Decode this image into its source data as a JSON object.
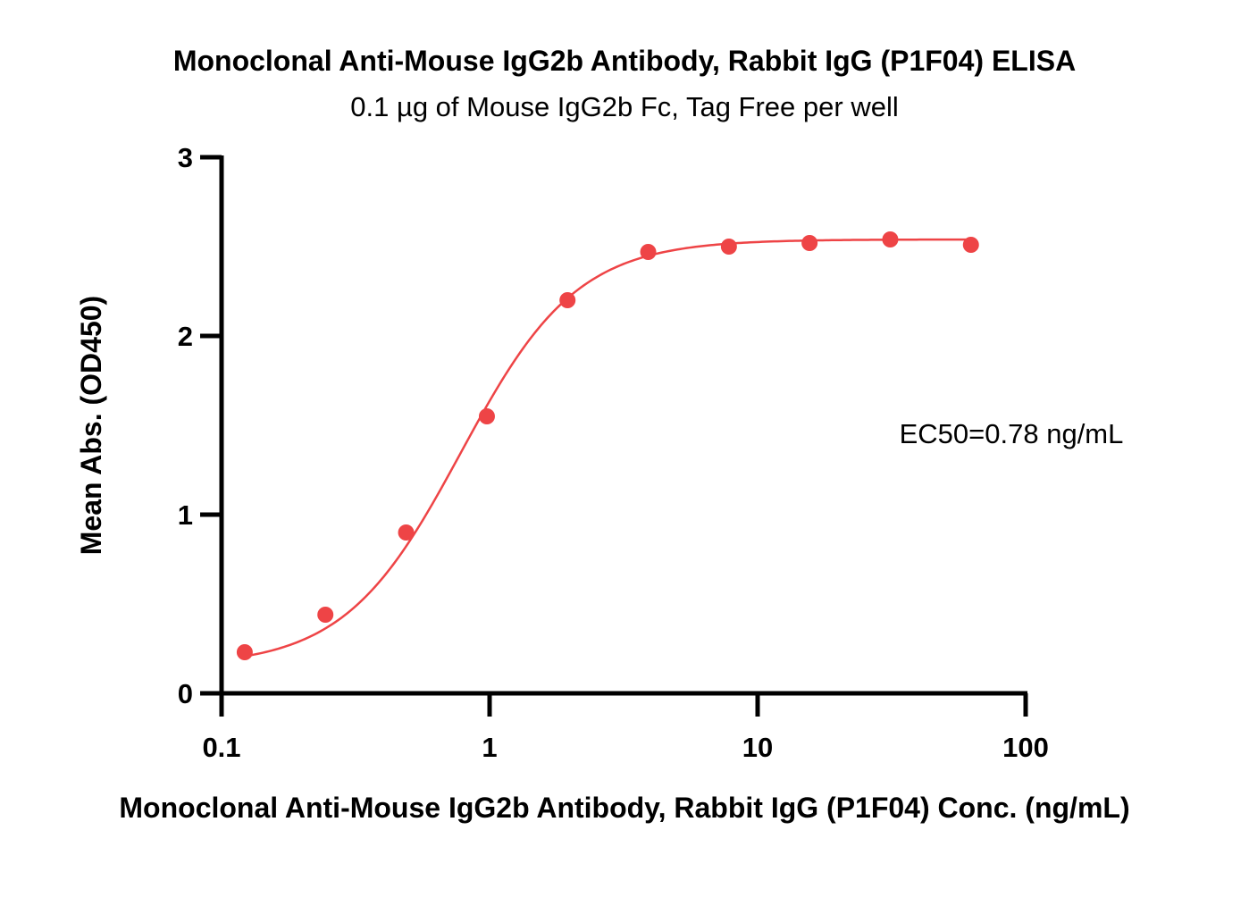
{
  "chart_data": {
    "type": "scatter",
    "title": "Monoclonal Anti-Mouse IgG2b Antibody, Rabbit IgG (P1F04) ELISA",
    "subtitle": "0.1 µg of Mouse IgG2b Fc, Tag Free per well",
    "xlabel": "Monoclonal Anti-Mouse IgG2b Antibody, Rabbit IgG (P1F04) Conc. (ng/mL)",
    "ylabel": "Mean Abs. (OD450)",
    "x_scale": "log",
    "xlim": [
      0.1,
      100
    ],
    "ylim": [
      0,
      3
    ],
    "x_ticks": [
      0.1,
      1,
      10,
      100
    ],
    "x_tick_labels": [
      "0.1",
      "1",
      "10",
      "100"
    ],
    "y_ticks": [
      0,
      1,
      2,
      3
    ],
    "y_tick_labels": [
      "0",
      "1",
      "2",
      "3"
    ],
    "grid": false,
    "legend": "none",
    "annotation": "EC50=0.78 ng/mL",
    "series": [
      {
        "x": [
          0.122,
          0.244,
          0.488,
          0.977,
          1.953,
          3.906,
          7.813,
          15.625,
          31.25,
          62.5
        ],
        "y": [
          0.23,
          0.44,
          0.9,
          1.55,
          2.2,
          2.47,
          2.5,
          2.52,
          2.54,
          2.51
        ],
        "color": "#ee4446",
        "fit": {
          "model": "4PL",
          "bottom": 0.15,
          "top": 2.54,
          "ec50": 0.78,
          "hill": 2.0
        }
      }
    ]
  }
}
